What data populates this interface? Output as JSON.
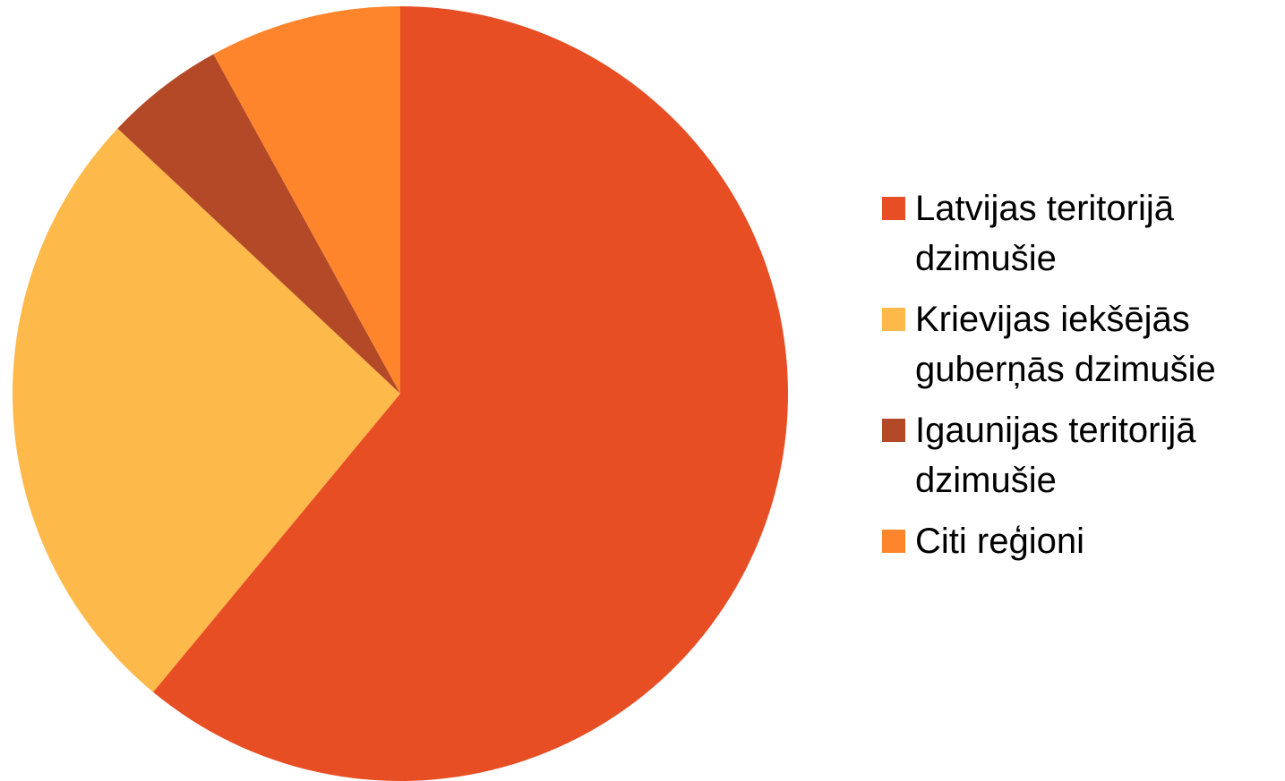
{
  "chart_data": {
    "type": "pie",
    "categories": [
      "Latvijas teritorijā dzimušie",
      "Krievijas iekšējās guberņās dzimušie",
      "Igaunijas teritorijā dzimušie",
      "Citi reģioni"
    ],
    "values": [
      61,
      26,
      5,
      8
    ],
    "colors": [
      "#e84e23",
      "#fdb94a",
      "#b34927",
      "#fe852b"
    ],
    "legend": "right"
  }
}
